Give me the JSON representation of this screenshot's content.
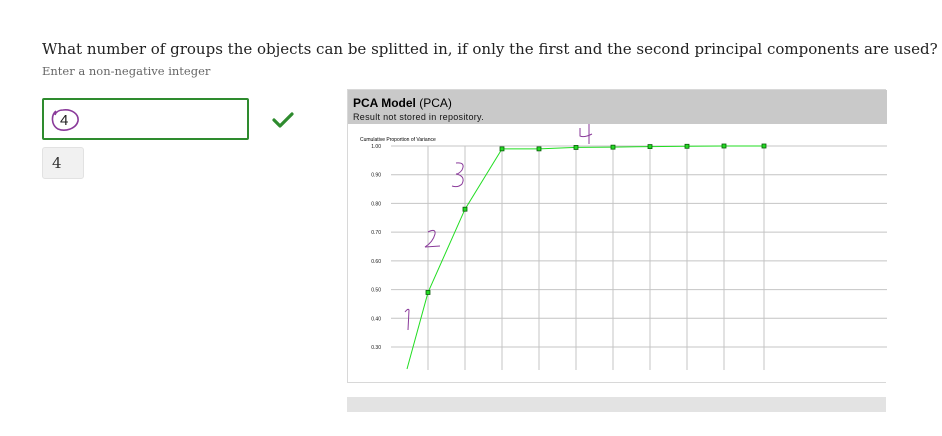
{
  "question": {
    "text": "What number of groups the objects can be splitted in, if only the first and the second principal components are used?",
    "hint": "Enter a non-negative integer"
  },
  "answer": {
    "value": "4",
    "status": "correct",
    "status_icon": "check-icon",
    "correct_answer": "4"
  },
  "colors": {
    "correct_green": "#2e8b2e",
    "line_green": "#22dd22",
    "marker_dark_green": "#0a5a0a",
    "annotation_purple": "#8a3a9a",
    "panel_header": "#c9c9c9"
  },
  "pca_panel": {
    "title_bold": "PCA Model",
    "title_rest": " (PCA)",
    "subtitle": "Result not stored in repository."
  },
  "chart_data": {
    "type": "line",
    "ylabel": "Cumulative Proportion of Variance",
    "y_ticks": [
      "1.00",
      "0.90",
      "0.80",
      "0.70",
      "0.60",
      "0.50",
      "0.40",
      "0.30"
    ],
    "ylim": [
      0.22,
      1.0
    ],
    "x": [
      1,
      2,
      3,
      4,
      5,
      6,
      7,
      8,
      9,
      10
    ],
    "series": [
      {
        "values": [
          0.49,
          0.78,
          0.99,
          0.99,
          0.995,
          0.996,
          0.998,
          0.999,
          1.0,
          1.0
        ]
      }
    ],
    "grid": true,
    "annotations": [
      "1",
      "2",
      "3",
      "4"
    ]
  }
}
